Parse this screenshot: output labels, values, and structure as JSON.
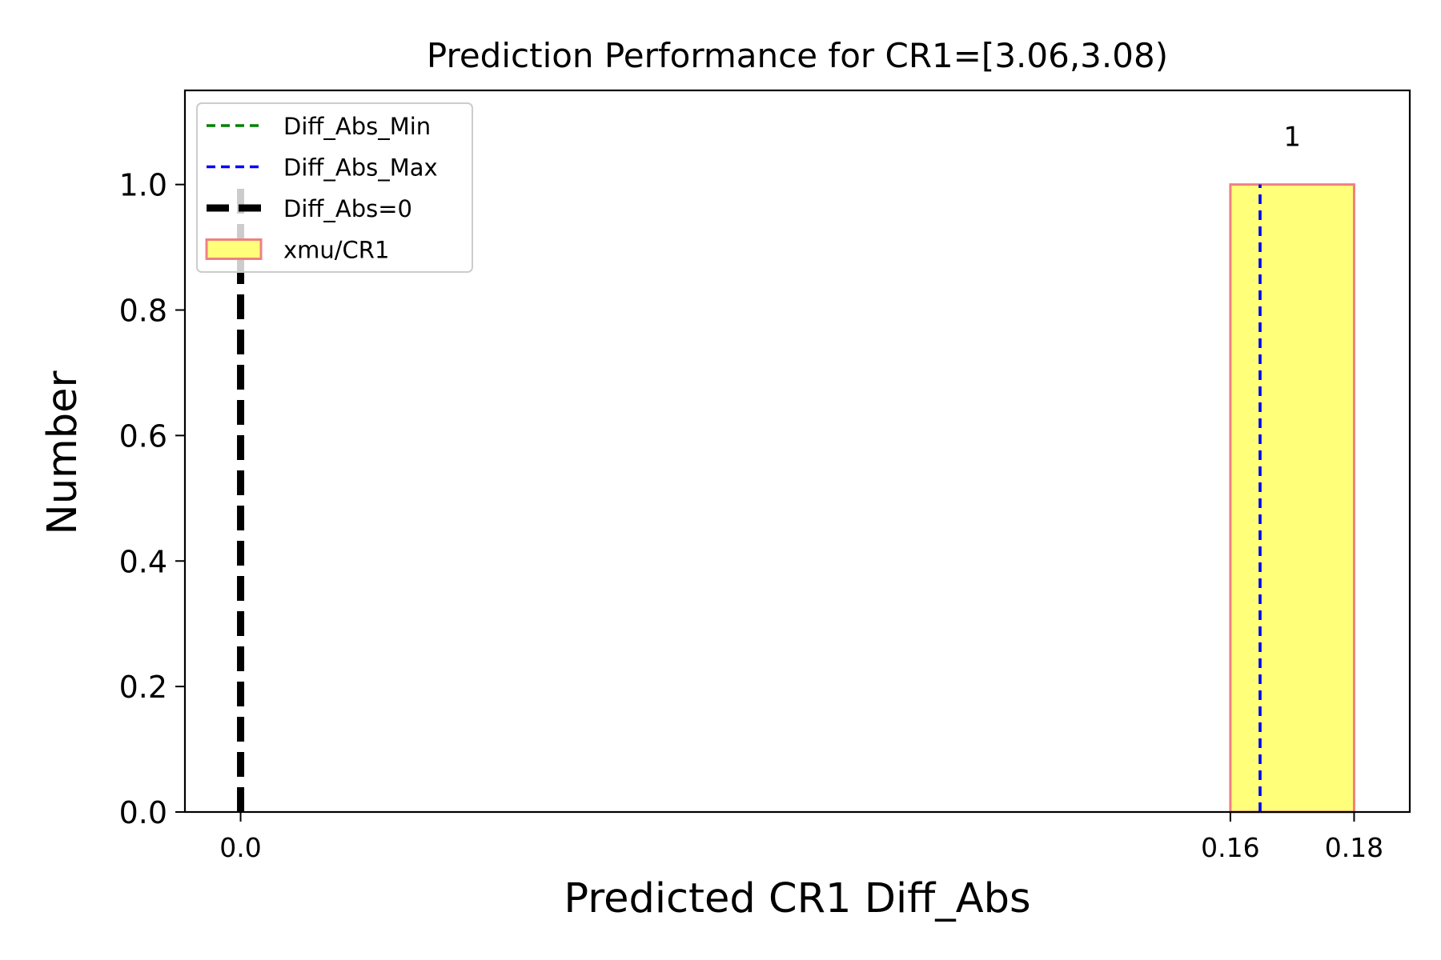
{
  "chart_data": {
    "type": "bar",
    "title": "Prediction Performance for CR1=[3.06,3.08)",
    "xlabel": "Predicted CR1 Diff_Abs",
    "ylabel": "Number",
    "xlim": [
      -0.009,
      0.189
    ],
    "ylim": [
      0,
      1.15
    ],
    "xticks": [
      0.0,
      0.16,
      0.18
    ],
    "xtick_labels": [
      "0.0",
      "0.16",
      "0.18"
    ],
    "yticks": [
      0.0,
      0.2,
      0.4,
      0.6,
      0.8,
      1.0
    ],
    "ytick_labels": [
      "0.0",
      "0.2",
      "0.4",
      "0.6",
      "0.8",
      "1.0"
    ],
    "grid": false,
    "legend_position": "top-left",
    "bars": [
      {
        "series": "xmu/CR1",
        "x_start": 0.16,
        "x_end": 0.18,
        "value": 1,
        "label": "1",
        "fill_color": "#FFFF7A",
        "edge_color": "#F08080"
      }
    ],
    "vlines": [
      {
        "name": "Diff_Abs_Min",
        "x": 0.1648,
        "color": "#008000",
        "style": "dashed"
      },
      {
        "name": "Diff_Abs_Max",
        "x": 0.1648,
        "color": "#0000FF",
        "style": "dashed"
      },
      {
        "name": "Diff_Abs=0",
        "x": 0.0,
        "color": "#000000",
        "style": "dashed-thick"
      }
    ],
    "legend": [
      {
        "label": "Diff_Abs_Min",
        "kind": "line",
        "color": "#008000",
        "style": "dashed"
      },
      {
        "label": "Diff_Abs_Max",
        "kind": "line",
        "color": "#0000FF",
        "style": "dashed"
      },
      {
        "label": "Diff_Abs=0",
        "kind": "line",
        "color": "#000000",
        "style": "dashed-thick"
      },
      {
        "label": "xmu/CR1",
        "kind": "patch",
        "color": "#FFFF7A",
        "edge": "#F08080"
      }
    ]
  }
}
